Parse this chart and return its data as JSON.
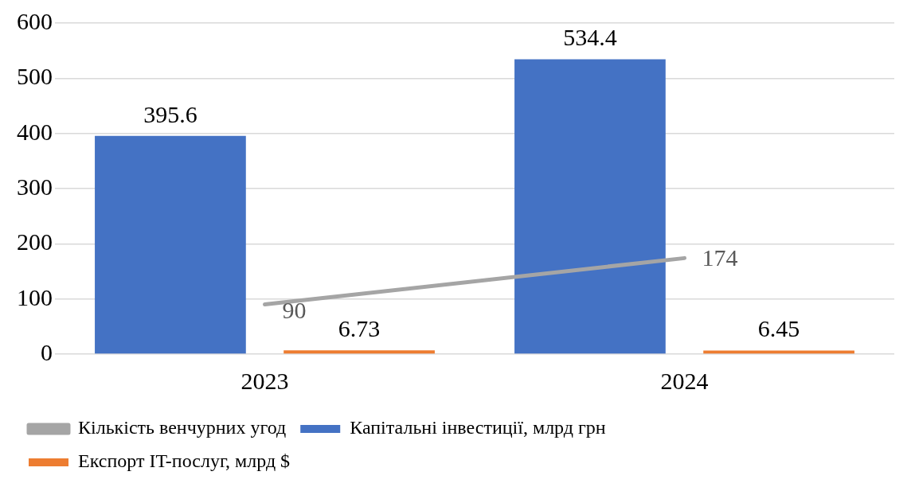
{
  "chart_data": {
    "type": "bar",
    "categories": [
      "2023",
      "2024"
    ],
    "series": [
      {
        "name": "Капітальні інвестиції, млрд грн",
        "color": "#4472c4",
        "values": [
          395.6,
          534.4
        ]
      },
      {
        "name": "Експорт IT-послуг, млрд $",
        "color": "#ed7d31",
        "values": [
          6.73,
          6.45
        ]
      },
      {
        "name": "Кількість венчурних угод",
        "type": "line",
        "color": "#a5a5a5",
        "values": [
          90,
          174
        ],
        "marker": "none"
      }
    ],
    "ylim": [
      0,
      600
    ],
    "yticks": [
      0,
      100,
      200,
      300,
      400,
      500,
      600
    ],
    "grid": "y",
    "legend": "bottom",
    "data_labels": true
  }
}
